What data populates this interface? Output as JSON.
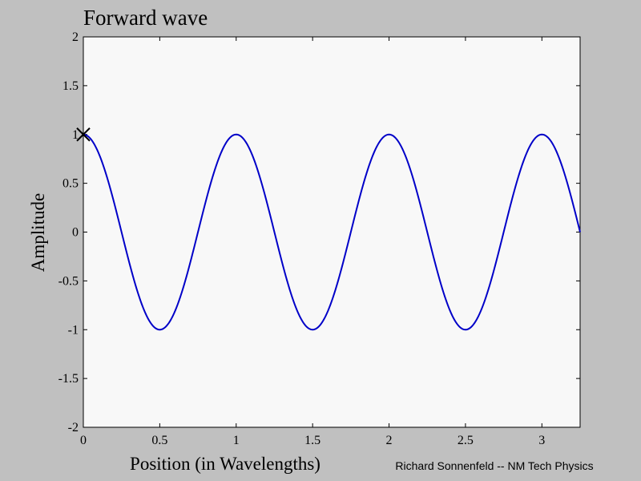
{
  "chart_data": {
    "type": "line",
    "title": "Forward wave",
    "xlabel": "Position (in Wavelengths)",
    "ylabel": "Amplitude",
    "xlim": [
      0,
      3.25
    ],
    "ylim": [
      -2,
      2
    ],
    "xticks": [
      0,
      0.5,
      1,
      1.5,
      2,
      2.5,
      3
    ],
    "xtick_labels": [
      "0",
      "0.5",
      "1",
      "1.5",
      "2",
      "2.5",
      "3"
    ],
    "yticks": [
      -2,
      -1.5,
      -1,
      -0.5,
      0,
      0.5,
      1,
      1.5,
      2
    ],
    "ytick_labels": [
      "-2",
      "-1.5",
      "-1",
      "-0.5",
      "0",
      "0.5",
      "1",
      "1.5",
      "2"
    ],
    "grid": false,
    "series": [
      {
        "function": "cos(2*pi*x)",
        "x_range": [
          0,
          3.25
        ],
        "color": "#0000c8",
        "x": [
          0,
          0.25,
          0.5,
          0.75,
          1,
          1.25,
          1.5,
          1.75,
          2,
          2.25,
          2.5,
          2.75,
          3,
          3.25
        ],
        "y": [
          1,
          0,
          -1,
          0,
          1,
          0,
          -1,
          0,
          1,
          0,
          -1,
          0,
          1,
          0
        ]
      }
    ],
    "markers": [
      {
        "x": 0,
        "y": 1,
        "symbol": "x",
        "color": "#000000"
      }
    ]
  },
  "credit": "Richard Sonnenfeld -- NM Tech Physics"
}
